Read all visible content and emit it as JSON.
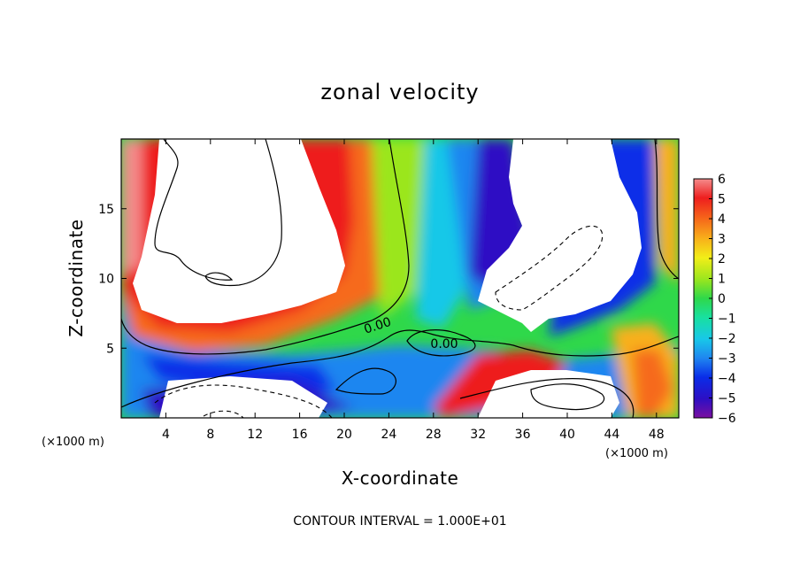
{
  "chart_data": {
    "type": "heatmap",
    "title": "zonal velocity",
    "xlabel": "X-coordinate",
    "ylabel": "Z-coordinate",
    "x_unit_label_left": "(×1000 m)",
    "x_unit_label_right": "(×1000 m)",
    "xlim": [
      0,
      50
    ],
    "ylim": [
      0,
      20
    ],
    "x_ticks": [
      4,
      8,
      12,
      16,
      20,
      24,
      28,
      32,
      36,
      40,
      44,
      48
    ],
    "y_ticks": [
      5,
      10,
      15
    ],
    "colorbar": {
      "ticks": [
        6,
        5,
        4,
        3,
        2,
        1,
        0,
        -1,
        -2,
        -3,
        -4,
        -5,
        -6
      ],
      "tick_labels": [
        "6",
        "5",
        "4",
        "3",
        "2",
        "1",
        "0",
        "−1",
        "−2",
        "−3",
        "−4",
        "−5",
        "−6"
      ],
      "range": [
        -6,
        6
      ],
      "colors": [
        "#7a0fa0",
        "#2d0fc4",
        "#0a2de8",
        "#1f86f0",
        "#18c8e8",
        "#18e0a0",
        "#2fd84a",
        "#9be61e",
        "#f2ee18",
        "#f8b01a",
        "#f66a1a",
        "#ee1e1e",
        "#f48c8c"
      ]
    },
    "contour_labels": [
      "0.00",
      "0.00"
    ],
    "footer": "CONTOUR INTERVAL = 1.000E+01"
  }
}
